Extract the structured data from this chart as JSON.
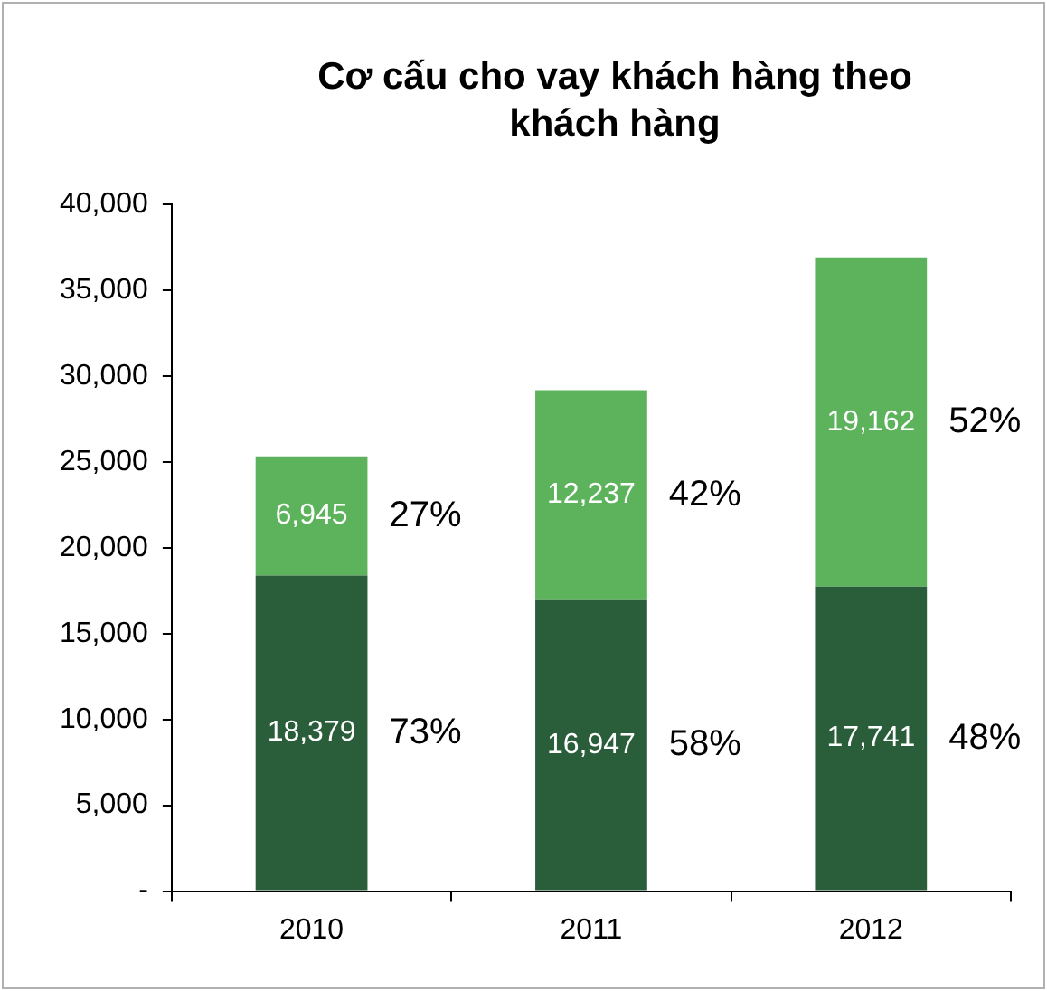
{
  "chart_data": {
    "type": "bar",
    "title": "Cơ cấu cho vay khách hàng theo khách hàng",
    "categories": [
      "2010",
      "2011",
      "2012"
    ],
    "stacked": true,
    "series": [
      {
        "color": "#2a5e3a",
        "values": [
          18379,
          16947,
          17741
        ],
        "value_labels": [
          "18,379",
          "16,947",
          "17,741"
        ]
      },
      {
        "color": "#5cb35c",
        "values": [
          6945,
          12237,
          19162
        ],
        "value_labels": [
          "6,945",
          "12,237",
          "19,162"
        ]
      }
    ],
    "ylim": [
      0,
      40000
    ],
    "yticks": [
      {
        "value": 0,
        "label": "-"
      },
      {
        "value": 5000,
        "label": "5,000"
      },
      {
        "value": 10000,
        "label": "10,000"
      },
      {
        "value": 15000,
        "label": "15,000"
      },
      {
        "value": 20000,
        "label": "20,000"
      },
      {
        "value": 25000,
        "label": "25,000"
      },
      {
        "value": 30000,
        "label": "30,000"
      },
      {
        "value": 35000,
        "label": "35,000"
      },
      {
        "value": 40000,
        "label": "40,000"
      }
    ],
    "grid": false,
    "legend": false,
    "annotations": [
      "27%",
      "73%",
      "42%",
      "58%",
      "52%",
      "48%"
    ]
  }
}
